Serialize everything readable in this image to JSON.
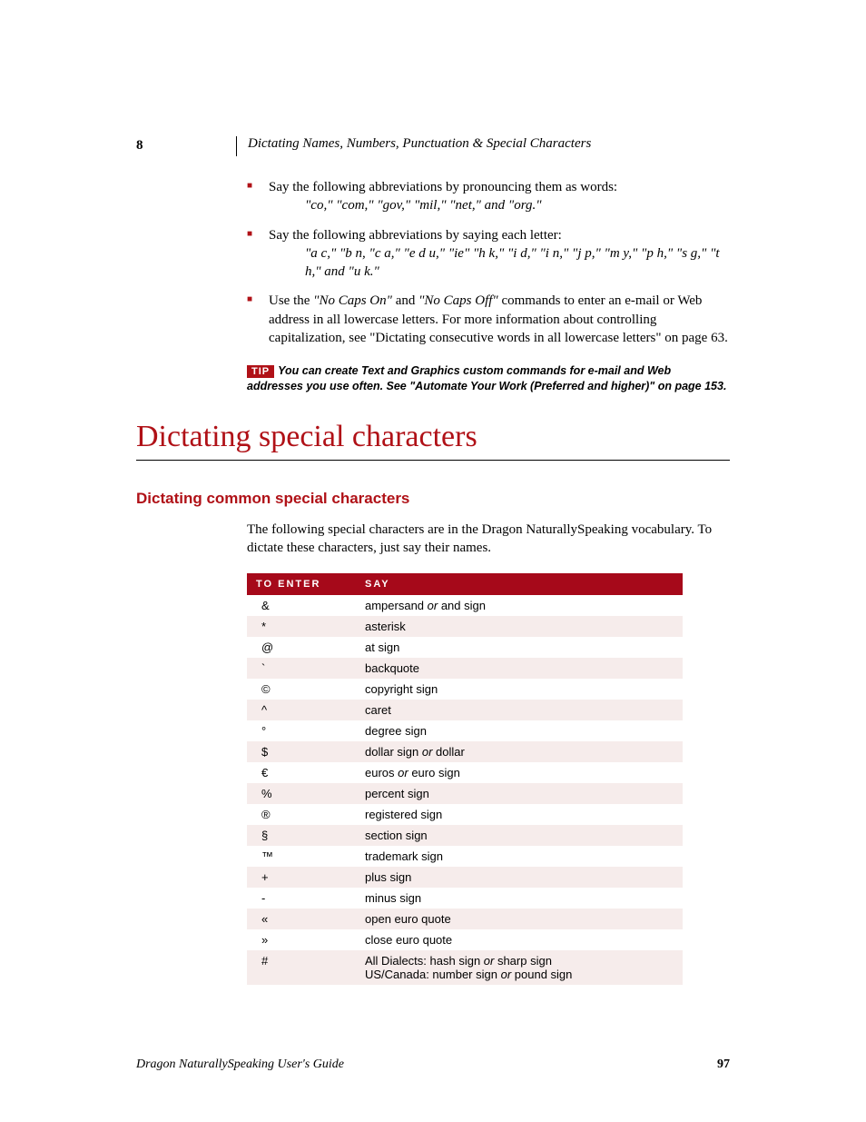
{
  "header": {
    "chapter_number": "8",
    "chapter_title": "Dictating Names, Numbers, Punctuation & Special Characters"
  },
  "bullets": [
    {
      "lead": "Say the following abbreviations by pronouncing them as words:",
      "abbrev": "\"co,\" \"com,\" \"gov,\" \"mil,\" \"net,\" and \"org.\""
    },
    {
      "lead": "Say the following abbreviations by saying each letter:",
      "abbrev": "\"a c,\" \"b n, \"c a,\" \"e d u,\" \"ie\" \"h k,\" \"i d,\" \"i n,\" \"j p,\" \"m y,\" \"p h,\" \"s g,\" \"t h,\" and \"u k.\""
    },
    {
      "lead_pre": "Use the ",
      "cmd1": "\"No Caps On\"",
      "mid": " and ",
      "cmd2": "\"No Caps Off\"",
      "lead_post": " commands to enter an e-mail or Web address in all lowercase letters. For more information about controlling capitalization, see \"Dictating consecutive words in all lowercase letters\" on page 63."
    }
  ],
  "tip": {
    "badge": "TIP",
    "text": "You can create Text and Graphics custom commands for e-mail and Web addresses you use often. See \"Automate Your Work (Preferred and higher)\" on page 153."
  },
  "section_title": "Dictating special characters",
  "subsection_title": "Dictating common special characters",
  "intro": "The following special characters are in the Dragon NaturallySpeaking vocabulary. To dictate these characters, just say their names.",
  "table": {
    "columns": [
      "TO ENTER",
      "SAY"
    ],
    "rows": [
      {
        "enter": "&",
        "say_pre": "ampersand ",
        "say_it": "or",
        "say_post": " and sign"
      },
      {
        "enter": "*",
        "say_pre": "asterisk",
        "say_it": "",
        "say_post": ""
      },
      {
        "enter": "@",
        "say_pre": "at sign",
        "say_it": "",
        "say_post": ""
      },
      {
        "enter": "`",
        "say_pre": "backquote",
        "say_it": "",
        "say_post": ""
      },
      {
        "enter": "©",
        "say_pre": "copyright sign",
        "say_it": "",
        "say_post": ""
      },
      {
        "enter": "^",
        "say_pre": "caret",
        "say_it": "",
        "say_post": ""
      },
      {
        "enter": "°",
        "say_pre": "degree sign",
        "say_it": "",
        "say_post": ""
      },
      {
        "enter": "$",
        "say_pre": "dollar sign ",
        "say_it": "or",
        "say_post": " dollar"
      },
      {
        "enter": "€",
        "say_pre": "euros ",
        "say_it": "or",
        "say_post": " euro sign"
      },
      {
        "enter": "%",
        "say_pre": "percent sign",
        "say_it": "",
        "say_post": ""
      },
      {
        "enter": "®",
        "say_pre": "registered sign",
        "say_it": "",
        "say_post": ""
      },
      {
        "enter": "§",
        "say_pre": "section sign",
        "say_it": "",
        "say_post": ""
      },
      {
        "enter": "™",
        "say_pre": "trademark sign",
        "say_it": "",
        "say_post": ""
      },
      {
        "enter": "+",
        "say_pre": "plus sign",
        "say_it": "",
        "say_post": ""
      },
      {
        "enter": "-",
        "say_pre": "minus sign",
        "say_it": "",
        "say_post": ""
      },
      {
        "enter": "«",
        "say_pre": "open euro quote",
        "say_it": "",
        "say_post": ""
      },
      {
        "enter": "»",
        "say_pre": "close euro quote",
        "say_it": "",
        "say_post": ""
      },
      {
        "enter": "#",
        "say_pre": "All Dialects: hash sign ",
        "say_it": "or",
        "say_post": " sharp sign",
        "line2_pre": "US/Canada: number sign ",
        "line2_it": "or",
        "line2_post": " pound sign"
      }
    ]
  },
  "footer": {
    "title": "Dragon NaturallySpeaking User's Guide",
    "page": "97"
  },
  "colors": {
    "accent": "#b01117",
    "table_header": "#a6091a",
    "row_alt": "#f6eceb"
  }
}
